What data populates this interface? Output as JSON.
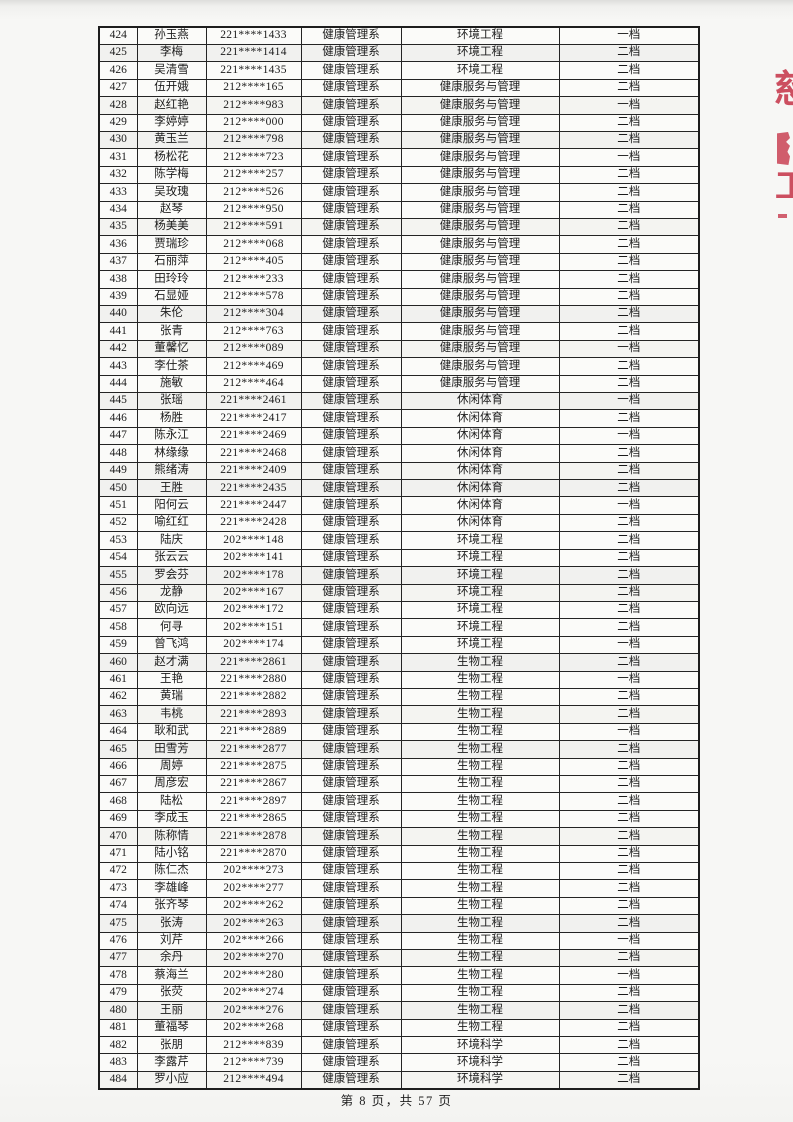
{
  "page": {
    "footer": {
      "label": "第 8 页，共 57 页",
      "page_number": "8",
      "total_pages": "57"
    }
  },
  "stamp": {
    "color": "#cc4f60",
    "fragment_chars": [
      "慈",
      "工"
    ]
  },
  "table": {
    "columns": [
      "no",
      "name",
      "student_id",
      "department",
      "major",
      "level"
    ],
    "rows": [
      {
        "no": "424",
        "name": "孙玉燕",
        "student_id": "221****1433",
        "department": "健康管理系",
        "major": "环境工程",
        "level": "一档"
      },
      {
        "no": "425",
        "name": "李梅",
        "student_id": "221****1414",
        "department": "健康管理系",
        "major": "环境工程",
        "level": "二档"
      },
      {
        "no": "426",
        "name": "吴清雪",
        "student_id": "221****1435",
        "department": "健康管理系",
        "major": "环境工程",
        "level": "二档"
      },
      {
        "no": "427",
        "name": "伍开娥",
        "student_id": "212****165",
        "department": "健康管理系",
        "major": "健康服务与管理",
        "level": "二档"
      },
      {
        "no": "428",
        "name": "赵红艳",
        "student_id": "212****983",
        "department": "健康管理系",
        "major": "健康服务与管理",
        "level": "一档"
      },
      {
        "no": "429",
        "name": "李婷婷",
        "student_id": "212****000",
        "department": "健康管理系",
        "major": "健康服务与管理",
        "level": "二档"
      },
      {
        "no": "430",
        "name": "黄玉兰",
        "student_id": "212****798",
        "department": "健康管理系",
        "major": "健康服务与管理",
        "level": "二档"
      },
      {
        "no": "431",
        "name": "杨松花",
        "student_id": "212****723",
        "department": "健康管理系",
        "major": "健康服务与管理",
        "level": "一档"
      },
      {
        "no": "432",
        "name": "陈学梅",
        "student_id": "212****257",
        "department": "健康管理系",
        "major": "健康服务与管理",
        "level": "二档"
      },
      {
        "no": "433",
        "name": "吴玫瑰",
        "student_id": "212****526",
        "department": "健康管理系",
        "major": "健康服务与管理",
        "level": "二档"
      },
      {
        "no": "434",
        "name": "赵琴",
        "student_id": "212****950",
        "department": "健康管理系",
        "major": "健康服务与管理",
        "level": "二档"
      },
      {
        "no": "435",
        "name": "杨美美",
        "student_id": "212****591",
        "department": "健康管理系",
        "major": "健康服务与管理",
        "level": "二档"
      },
      {
        "no": "436",
        "name": "贾瑞珍",
        "student_id": "212****068",
        "department": "健康管理系",
        "major": "健康服务与管理",
        "level": "二档"
      },
      {
        "no": "437",
        "name": "石丽萍",
        "student_id": "212****405",
        "department": "健康管理系",
        "major": "健康服务与管理",
        "level": "二档"
      },
      {
        "no": "438",
        "name": "田玲玲",
        "student_id": "212****233",
        "department": "健康管理系",
        "major": "健康服务与管理",
        "level": "二档"
      },
      {
        "no": "439",
        "name": "石显娅",
        "student_id": "212****578",
        "department": "健康管理系",
        "major": "健康服务与管理",
        "level": "二档"
      },
      {
        "no": "440",
        "name": "朱伦",
        "student_id": "212****304",
        "department": "健康管理系",
        "major": "健康服务与管理",
        "level": "二档"
      },
      {
        "no": "441",
        "name": "张青",
        "student_id": "212****763",
        "department": "健康管理系",
        "major": "健康服务与管理",
        "level": "二档"
      },
      {
        "no": "442",
        "name": "董馨忆",
        "student_id": "212****089",
        "department": "健康管理系",
        "major": "健康服务与管理",
        "level": "一档"
      },
      {
        "no": "443",
        "name": "李仕茶",
        "student_id": "212****469",
        "department": "健康管理系",
        "major": "健康服务与管理",
        "level": "二档"
      },
      {
        "no": "444",
        "name": "施敏",
        "student_id": "212****464",
        "department": "健康管理系",
        "major": "健康服务与管理",
        "level": "二档"
      },
      {
        "no": "445",
        "name": "张瑶",
        "student_id": "221****2461",
        "department": "健康管理系",
        "major": "休闲体育",
        "level": "一档"
      },
      {
        "no": "446",
        "name": "杨胜",
        "student_id": "221****2417",
        "department": "健康管理系",
        "major": "休闲体育",
        "level": "二档"
      },
      {
        "no": "447",
        "name": "陈永江",
        "student_id": "221****2469",
        "department": "健康管理系",
        "major": "休闲体育",
        "level": "一档"
      },
      {
        "no": "448",
        "name": "林缘缘",
        "student_id": "221****2468",
        "department": "健康管理系",
        "major": "休闲体育",
        "level": "二档"
      },
      {
        "no": "449",
        "name": "熊绪涛",
        "student_id": "221****2409",
        "department": "健康管理系",
        "major": "休闲体育",
        "level": "二档"
      },
      {
        "no": "450",
        "name": "王胜",
        "student_id": "221****2435",
        "department": "健康管理系",
        "major": "休闲体育",
        "level": "二档"
      },
      {
        "no": "451",
        "name": "阳何云",
        "student_id": "221****2447",
        "department": "健康管理系",
        "major": "休闲体育",
        "level": "一档"
      },
      {
        "no": "452",
        "name": "喻红红",
        "student_id": "221****2428",
        "department": "健康管理系",
        "major": "休闲体育",
        "level": "二档"
      },
      {
        "no": "453",
        "name": "陆庆",
        "student_id": "202****148",
        "department": "健康管理系",
        "major": "环境工程",
        "level": "二档"
      },
      {
        "no": "454",
        "name": "张云云",
        "student_id": "202****141",
        "department": "健康管理系",
        "major": "环境工程",
        "level": "二档"
      },
      {
        "no": "455",
        "name": "罗会芬",
        "student_id": "202****178",
        "department": "健康管理系",
        "major": "环境工程",
        "level": "二档"
      },
      {
        "no": "456",
        "name": "龙静",
        "student_id": "202****167",
        "department": "健康管理系",
        "major": "环境工程",
        "level": "二档"
      },
      {
        "no": "457",
        "name": "欧向远",
        "student_id": "202****172",
        "department": "健康管理系",
        "major": "环境工程",
        "level": "二档"
      },
      {
        "no": "458",
        "name": "何寻",
        "student_id": "202****151",
        "department": "健康管理系",
        "major": "环境工程",
        "level": "二档"
      },
      {
        "no": "459",
        "name": "曾飞鸿",
        "student_id": "202****174",
        "department": "健康管理系",
        "major": "环境工程",
        "level": "一档"
      },
      {
        "no": "460",
        "name": "赵才满",
        "student_id": "221****2861",
        "department": "健康管理系",
        "major": "生物工程",
        "level": "二档"
      },
      {
        "no": "461",
        "name": "王艳",
        "student_id": "221****2880",
        "department": "健康管理系",
        "major": "生物工程",
        "level": "一档"
      },
      {
        "no": "462",
        "name": "黄瑞",
        "student_id": "221****2882",
        "department": "健康管理系",
        "major": "生物工程",
        "level": "二档"
      },
      {
        "no": "463",
        "name": "韦桃",
        "student_id": "221****2893",
        "department": "健康管理系",
        "major": "生物工程",
        "level": "二档"
      },
      {
        "no": "464",
        "name": "耿和武",
        "student_id": "221****2889",
        "department": "健康管理系",
        "major": "生物工程",
        "level": "一档"
      },
      {
        "no": "465",
        "name": "田雪芳",
        "student_id": "221****2877",
        "department": "健康管理系",
        "major": "生物工程",
        "level": "二档"
      },
      {
        "no": "466",
        "name": "周婷",
        "student_id": "221****2875",
        "department": "健康管理系",
        "major": "生物工程",
        "level": "二档"
      },
      {
        "no": "467",
        "name": "周彦宏",
        "student_id": "221****2867",
        "department": "健康管理系",
        "major": "生物工程",
        "level": "二档"
      },
      {
        "no": "468",
        "name": "陆松",
        "student_id": "221****2897",
        "department": "健康管理系",
        "major": "生物工程",
        "level": "二档"
      },
      {
        "no": "469",
        "name": "李成玉",
        "student_id": "221****2865",
        "department": "健康管理系",
        "major": "生物工程",
        "level": "二档"
      },
      {
        "no": "470",
        "name": "陈称情",
        "student_id": "221****2878",
        "department": "健康管理系",
        "major": "生物工程",
        "level": "二档"
      },
      {
        "no": "471",
        "name": "陆小铭",
        "student_id": "221****2870",
        "department": "健康管理系",
        "major": "生物工程",
        "level": "二档"
      },
      {
        "no": "472",
        "name": "陈仁杰",
        "student_id": "202****273",
        "department": "健康管理系",
        "major": "生物工程",
        "level": "二档"
      },
      {
        "no": "473",
        "name": "李雄峰",
        "student_id": "202****277",
        "department": "健康管理系",
        "major": "生物工程",
        "level": "二档"
      },
      {
        "no": "474",
        "name": "张齐琴",
        "student_id": "202****262",
        "department": "健康管理系",
        "major": "生物工程",
        "level": "二档"
      },
      {
        "no": "475",
        "name": "张涛",
        "student_id": "202****263",
        "department": "健康管理系",
        "major": "生物工程",
        "level": "二档"
      },
      {
        "no": "476",
        "name": "刘芹",
        "student_id": "202****266",
        "department": "健康管理系",
        "major": "生物工程",
        "level": "一档"
      },
      {
        "no": "477",
        "name": "余丹",
        "student_id": "202****270",
        "department": "健康管理系",
        "major": "生物工程",
        "level": "二档"
      },
      {
        "no": "478",
        "name": "蔡海兰",
        "student_id": "202****280",
        "department": "健康管理系",
        "major": "生物工程",
        "level": "一档"
      },
      {
        "no": "479",
        "name": "张荧",
        "student_id": "202****274",
        "department": "健康管理系",
        "major": "生物工程",
        "level": "二档"
      },
      {
        "no": "480",
        "name": "王丽",
        "student_id": "202****276",
        "department": "健康管理系",
        "major": "生物工程",
        "level": "二档"
      },
      {
        "no": "481",
        "name": "董福琴",
        "student_id": "202****268",
        "department": "健康管理系",
        "major": "生物工程",
        "level": "二档"
      },
      {
        "no": "482",
        "name": "张朋",
        "student_id": "212****839",
        "department": "健康管理系",
        "major": "环境科学",
        "level": "二档"
      },
      {
        "no": "483",
        "name": "李露芹",
        "student_id": "212****739",
        "department": "健康管理系",
        "major": "环境科学",
        "level": "二档"
      },
      {
        "no": "484",
        "name": "罗小应",
        "student_id": "212****494",
        "department": "健康管理系",
        "major": "环境科学",
        "level": "二档"
      }
    ]
  }
}
